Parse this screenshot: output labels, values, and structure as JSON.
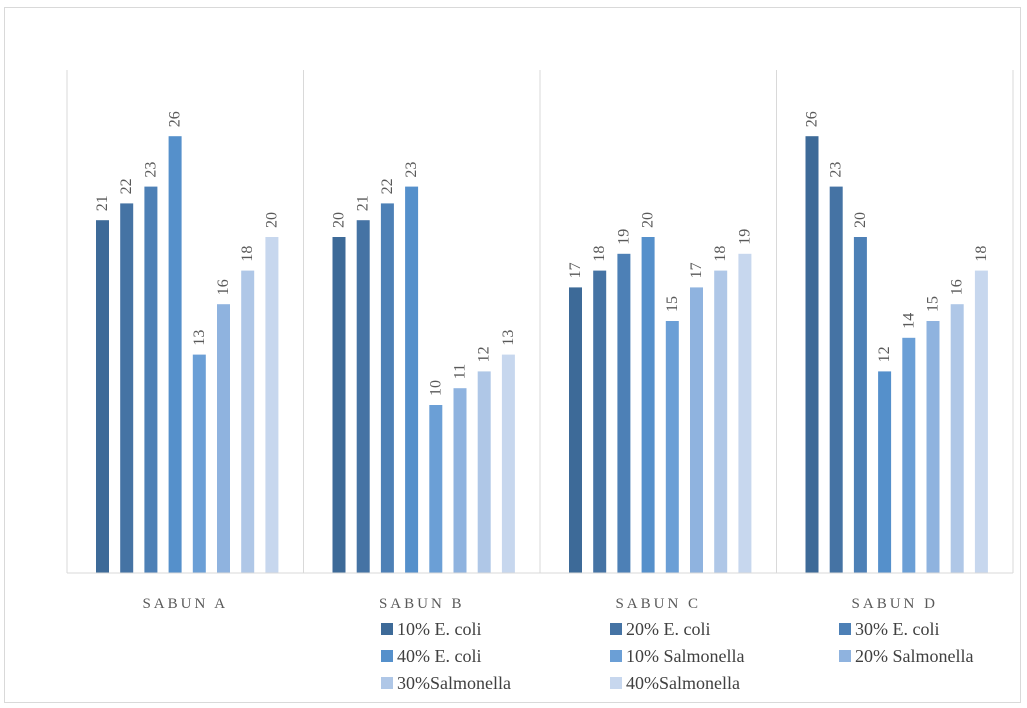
{
  "chart_data": {
    "type": "bar",
    "title": "",
    "xlabel": "",
    "ylabel": "",
    "ylim": [
      0,
      26
    ],
    "grid": false,
    "legend_position": "bottom",
    "categories": [
      "SABUN A",
      "SABUN B",
      "SABUN C",
      "SABUN D"
    ],
    "series": [
      {
        "name": "10% E. coli",
        "color": "#3d6a98",
        "values": [
          21,
          20,
          17,
          26
        ]
      },
      {
        "name": "20% E. coli",
        "color": "#4573a4",
        "values": [
          22,
          21,
          18,
          23
        ]
      },
      {
        "name": "30% E. coli",
        "color": "#4d80b6",
        "values": [
          23,
          22,
          19,
          20
        ]
      },
      {
        "name": "40% E. coli",
        "color": "#5590cb",
        "values": [
          26,
          23,
          20,
          12
        ]
      },
      {
        "name": "10% Salmonella",
        "color": "#6b9fd6",
        "values": [
          13,
          10,
          15,
          14
        ]
      },
      {
        "name": "20% Salmonella",
        "color": "#8fb3df",
        "values": [
          16,
          11,
          17,
          15
        ]
      },
      {
        "name": "30%Salmonella",
        "color": "#afc7e7",
        "values": [
          18,
          12,
          18,
          16
        ]
      },
      {
        "name": "40%Salmonella",
        "color": "#c7d7ee",
        "values": [
          20,
          13,
          19,
          18
        ]
      }
    ]
  }
}
